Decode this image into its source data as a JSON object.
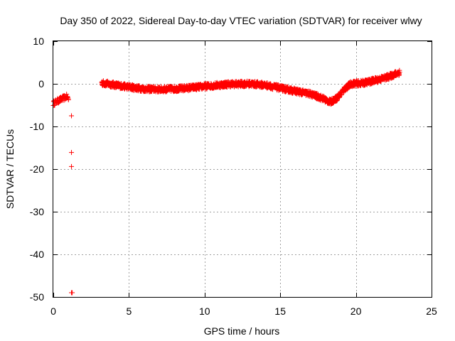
{
  "chart_data": {
    "type": "scatter",
    "title": "Day 350 of 2022, Sidereal Day-to-day VTEC variation (SDTVAR) for receiver wlwy",
    "xlabel": "GPS time / hours",
    "ylabel": "SDTVAR / TECUs",
    "xlim": [
      0,
      25
    ],
    "ylim": [
      -50,
      10
    ],
    "xticks": [
      0,
      5,
      10,
      15,
      20,
      25
    ],
    "yticks": [
      10,
      0,
      -10,
      -20,
      -30,
      -40,
      -50
    ],
    "grid": true,
    "marker": "+",
    "series": [
      {
        "name": "SDTVAR",
        "color": "#ff0000",
        "segments": [
          {
            "x_start": 0.0,
            "x_end": 1.0,
            "step": 0.02,
            "points": [
              [
                0.0,
                -4.6
              ],
              [
                0.3,
                -4.0
              ],
              [
                0.6,
                -3.5
              ],
              [
                0.9,
                -3.0
              ],
              [
                1.0,
                -3.6
              ]
            ],
            "spread": 1.2
          },
          {
            "x_start": 3.2,
            "x_end": 22.9,
            "step": 0.012,
            "points": [
              [
                3.2,
                0.2
              ],
              [
                4.5,
                -0.5
              ],
              [
                6.0,
                -1.2
              ],
              [
                7.0,
                -1.3
              ],
              [
                8.5,
                -1.1
              ],
              [
                10.0,
                -0.6
              ],
              [
                11.5,
                -0.1
              ],
              [
                13.0,
                0.0
              ],
              [
                14.0,
                -0.3
              ],
              [
                15.0,
                -1.0
              ],
              [
                16.0,
                -1.7
              ],
              [
                17.0,
                -2.4
              ],
              [
                17.8,
                -3.4
              ],
              [
                18.3,
                -4.3
              ],
              [
                18.8,
                -3.2
              ],
              [
                19.3,
                -1.0
              ],
              [
                19.7,
                0.0
              ],
              [
                20.5,
                0.2
              ],
              [
                21.5,
                1.0
              ],
              [
                22.2,
                1.7
              ],
              [
                22.9,
                2.7
              ]
            ],
            "spread": 1.3
          }
        ],
        "outliers": [
          [
            1.2,
            -7.5
          ],
          [
            1.2,
            -16.1
          ],
          [
            1.2,
            -19.4
          ],
          [
            1.2,
            -49.0
          ],
          [
            1.25,
            -49.0
          ]
        ]
      }
    ]
  }
}
